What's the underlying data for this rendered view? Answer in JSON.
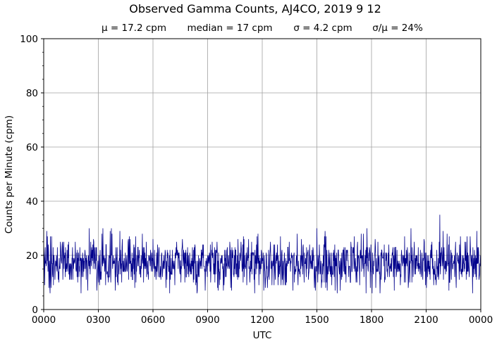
{
  "chart_data": {
    "type": "line",
    "title": "Observed Gamma Counts, AJ4CO, 2019 9 12",
    "subtitle": {
      "mean": "μ = 17.2 cpm",
      "median": "median = 17 cpm",
      "sigma": "σ = 4.2 cpm",
      "cv": "σ/μ = 24%"
    },
    "xlabel": "UTC",
    "ylabel": "Counts per Minute (cpm)",
    "xlim": [
      0,
      1440
    ],
    "ylim": [
      0,
      100
    ],
    "x_ticks": [
      0,
      180,
      360,
      540,
      720,
      900,
      1080,
      1260,
      1440
    ],
    "x_tick_labels": [
      "0000",
      "0300",
      "0600",
      "0900",
      "1200",
      "1500",
      "1800",
      "2100",
      "0000"
    ],
    "y_ticks": [
      0,
      20,
      40,
      60,
      80,
      100
    ],
    "y_tick_labels": [
      "0",
      "20",
      "40",
      "60",
      "80",
      "100"
    ],
    "grid": true,
    "series": [
      {
        "color": "#00008b",
        "sample_interval_minutes": 1,
        "mean": 17.2,
        "stdev": 4.2,
        "min": 6,
        "max": 35,
        "peaks": [
          {
            "x": 150,
            "y": 30
          },
          {
            "x": 195,
            "y": 30
          },
          {
            "x": 225,
            "y": 28
          },
          {
            "x": 285,
            "y": 26
          },
          {
            "x": 325,
            "y": 28
          },
          {
            "x": 555,
            "y": 25
          },
          {
            "x": 660,
            "y": 26
          },
          {
            "x": 780,
            "y": 27
          },
          {
            "x": 835,
            "y": 28
          },
          {
            "x": 900,
            "y": 30
          },
          {
            "x": 1065,
            "y": 30
          },
          {
            "x": 1210,
            "y": 30
          },
          {
            "x": 1305,
            "y": 35
          },
          {
            "x": 1395,
            "y": 27
          }
        ],
        "troughs": [
          {
            "x": 20,
            "y": 9
          },
          {
            "x": 175,
            "y": 7
          },
          {
            "x": 415,
            "y": 6
          },
          {
            "x": 575,
            "y": 7
          },
          {
            "x": 695,
            "y": 6
          },
          {
            "x": 725,
            "y": 7
          },
          {
            "x": 960,
            "y": 7
          },
          {
            "x": 1155,
            "y": 7
          },
          {
            "x": 1335,
            "y": 7
          }
        ]
      }
    ]
  }
}
